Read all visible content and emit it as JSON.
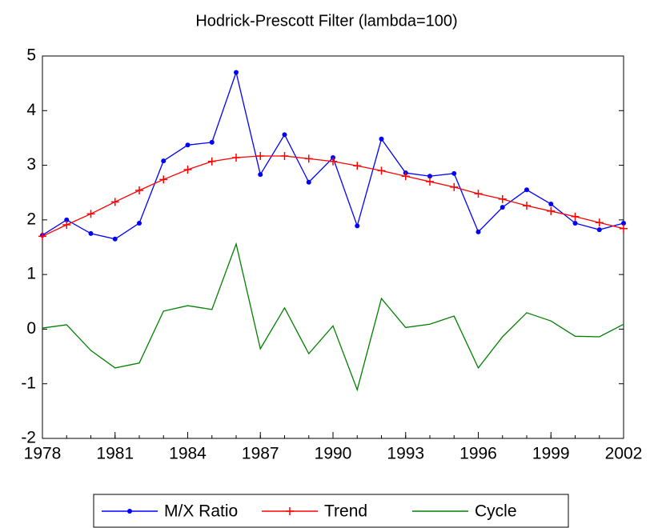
{
  "chart_data": {
    "type": "line",
    "title": "Hodrick-Prescott Filter (lambda=100)",
    "x": [
      1978,
      1979,
      1980,
      1981,
      1982,
      1983,
      1984,
      1985,
      1986,
      1987,
      1988,
      1989,
      1990,
      1991,
      1992,
      1993,
      1994,
      1995,
      1996,
      1997,
      1998,
      1999,
      2000,
      2001,
      2002
    ],
    "series": [
      {
        "name": "M/X Ratio",
        "color": "#0000ff",
        "marker": "dot",
        "values": [
          1.72,
          2.0,
          1.75,
          1.65,
          1.94,
          3.08,
          3.37,
          3.42,
          4.7,
          2.83,
          3.56,
          2.69,
          3.14,
          1.89,
          3.48,
          2.86,
          2.8,
          2.85,
          1.78,
          2.23,
          2.55,
          2.29,
          1.94,
          1.82,
          1.94
        ]
      },
      {
        "name": "Trend",
        "color": "#ff0000",
        "marker": "plus",
        "values": [
          1.7,
          1.91,
          2.11,
          2.33,
          2.54,
          2.74,
          2.92,
          3.07,
          3.14,
          3.17,
          3.17,
          3.12,
          3.07,
          2.99,
          2.9,
          2.8,
          2.7,
          2.6,
          2.48,
          2.38,
          2.26,
          2.16,
          2.06,
          1.95,
          1.84
        ]
      },
      {
        "name": "Cycle",
        "color": "#008000",
        "marker": "none",
        "values": [
          0.02,
          0.08,
          -0.39,
          -0.71,
          -0.62,
          0.33,
          0.43,
          0.36,
          1.56,
          -0.36,
          0.39,
          -0.45,
          0.06,
          -1.11,
          0.56,
          0.03,
          0.09,
          0.24,
          -0.71,
          -0.14,
          0.3,
          0.15,
          -0.13,
          -0.14,
          0.09
        ]
      }
    ],
    "xlim": [
      1978,
      2002
    ],
    "xticks": [
      1978,
      1981,
      1984,
      1987,
      1990,
      1993,
      1996,
      1999,
      2002
    ],
    "ylim": [
      -2,
      5
    ],
    "yticks": [
      -2,
      -1,
      0,
      1,
      2,
      3,
      4,
      5
    ],
    "grid": false,
    "legend": "bottom"
  }
}
